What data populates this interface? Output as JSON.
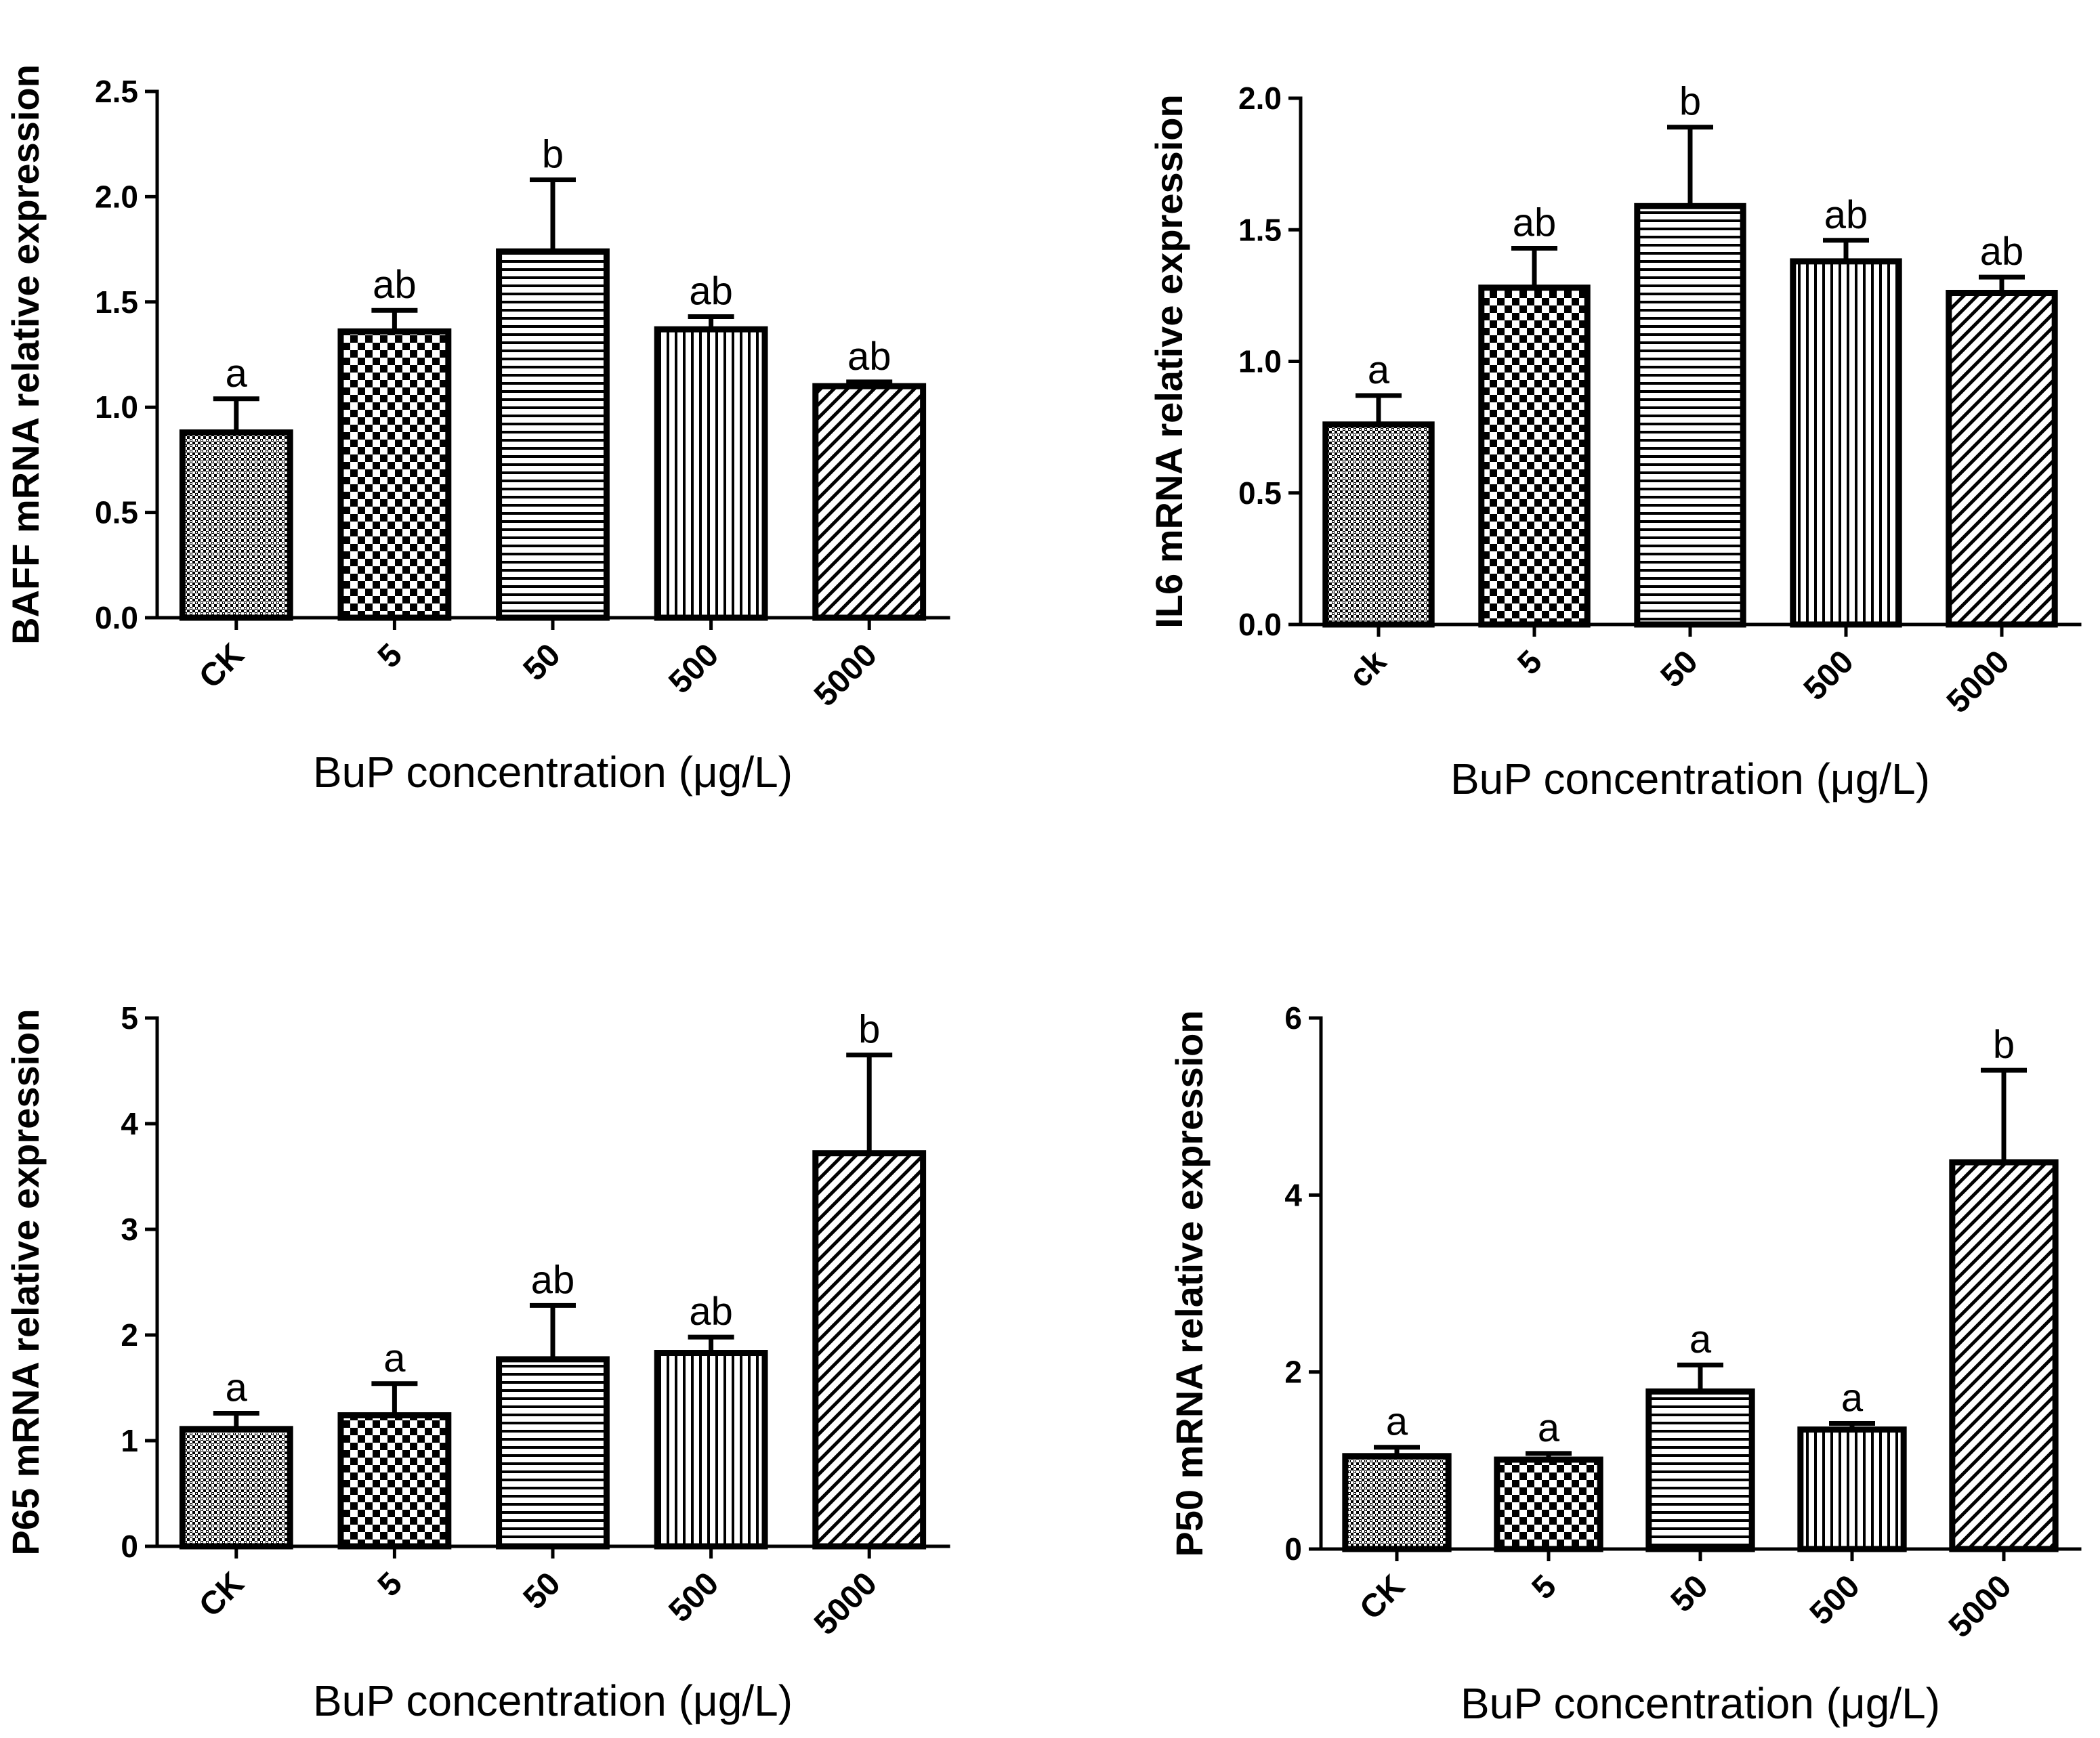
{
  "chart_data": [
    {
      "type": "bar",
      "ylabel": "BAFF mRNA relative expression",
      "xlabel": "BuP concentration (μg/L)",
      "categories": [
        "CK",
        "5",
        "50",
        "500",
        "5000"
      ],
      "values": [
        0.88,
        1.36,
        1.74,
        1.37,
        1.1
      ],
      "errors": [
        0.16,
        0.1,
        0.34,
        0.06,
        0.02
      ],
      "labels": [
        "a",
        "ab",
        "b",
        "ab",
        "ab"
      ],
      "patterns": [
        "dots",
        "checker",
        "hlines",
        "vlines",
        "diag"
      ],
      "ylim": [
        0,
        2.5
      ],
      "yticks": [
        "0.0",
        "0.5",
        "1.0",
        "1.5",
        "2.0",
        "2.5"
      ],
      "ytick_values": [
        0,
        0.5,
        1.0,
        1.5,
        2.0,
        2.5
      ]
    },
    {
      "type": "bar",
      "ylabel": "IL6 mRNA relative expression",
      "xlabel": "BuP concentration (μg/L)",
      "categories": [
        "ck",
        "5",
        "50",
        "500",
        "5000"
      ],
      "values": [
        0.76,
        1.28,
        1.59,
        1.38,
        1.26
      ],
      "errors": [
        0.11,
        0.15,
        0.3,
        0.08,
        0.06
      ],
      "labels": [
        "a",
        "ab",
        "b",
        "ab",
        "ab"
      ],
      "patterns": [
        "dots",
        "checker",
        "hlines",
        "vlines",
        "diag"
      ],
      "ylim": [
        0,
        2.0
      ],
      "yticks": [
        "0.0",
        "0.5",
        "1.0",
        "1.5",
        "2.0"
      ],
      "ytick_values": [
        0,
        0.5,
        1.0,
        1.5,
        2.0
      ]
    },
    {
      "type": "bar",
      "ylabel": "P65 mRNA relative expression",
      "xlabel": "BuP concentration (μg/L)",
      "categories": [
        "CK",
        "5",
        "50",
        "500",
        "5000"
      ],
      "values": [
        1.11,
        1.24,
        1.77,
        1.83,
        3.72
      ],
      "errors": [
        0.15,
        0.3,
        0.51,
        0.15,
        0.93
      ],
      "labels": [
        "a",
        "a",
        "ab",
        "ab",
        "b"
      ],
      "patterns": [
        "dots",
        "checker",
        "hlines",
        "vlines",
        "diag"
      ],
      "ylim": [
        0,
        5
      ],
      "yticks": [
        "0",
        "1",
        "2",
        "3",
        "4",
        "5"
      ],
      "ytick_values": [
        0,
        1,
        2,
        3,
        4,
        5
      ]
    },
    {
      "type": "bar",
      "ylabel": "P50 mRNA relative expression",
      "xlabel": "BuP concentration (μg/L)",
      "categories": [
        "CK",
        "5",
        "50",
        "500",
        "5000"
      ],
      "values": [
        1.05,
        1.01,
        1.78,
        1.35,
        4.37
      ],
      "errors": [
        0.1,
        0.07,
        0.3,
        0.07,
        1.04
      ],
      "labels": [
        "a",
        "a",
        "a",
        "a",
        "b"
      ],
      "patterns": [
        "dots",
        "checker",
        "hlines",
        "vlines",
        "diag"
      ],
      "ylim": [
        0,
        6
      ],
      "yticks": [
        "0",
        "2",
        "4",
        "6"
      ],
      "ytick_values": [
        0,
        2,
        4,
        6
      ]
    }
  ]
}
